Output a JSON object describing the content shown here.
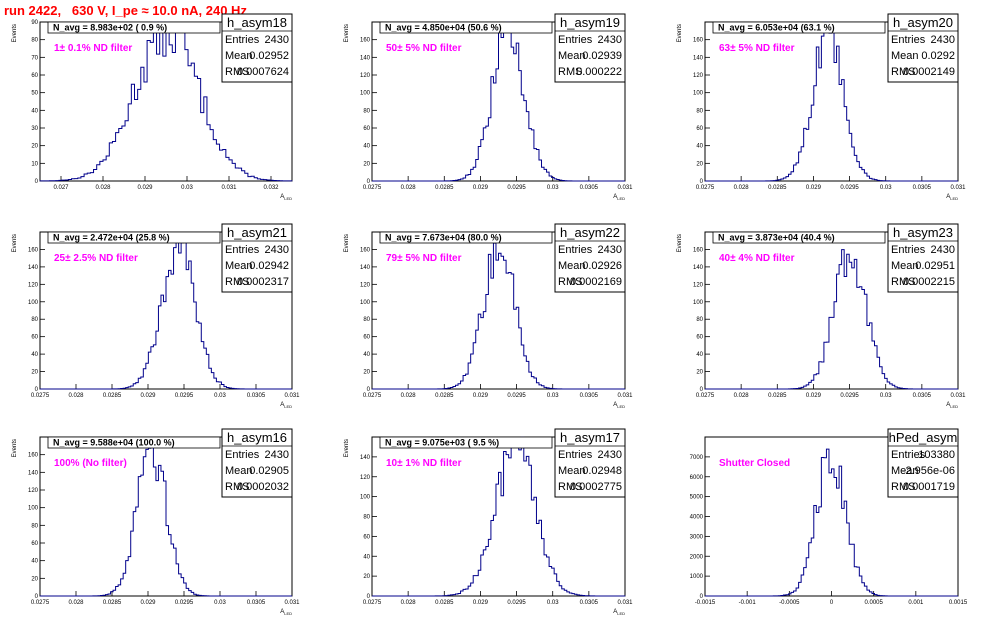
{
  "page": {
    "title": "run 2422,   630 V, I_pe ≈ 10.0 nA, 240 Hz",
    "title_color": "#ff0000"
  },
  "colors": {
    "histogram_line": "#00008b",
    "note_text": "#ff00ff",
    "frame": "#000000"
  },
  "chart_data": [
    {
      "type": "bar",
      "name": "h_asym18",
      "stats": {
        "entries_label": "Entries",
        "entries": "2430",
        "mean_label": "Mean",
        "mean": "0.02952",
        "rms_label": "RMS",
        "rms": "0.0007624"
      },
      "n_avg": "N_avg = 8.983e+02 ( 0.9 %)",
      "note": "1± 0.1% ND filter",
      "xlabel": "A_LED",
      "ylabel": "Events",
      "xlim": [
        0.0265,
        0.0325
      ],
      "ylim": [
        0,
        90
      ],
      "xticks": [
        0.027,
        0.028,
        0.029,
        0.03,
        0.031,
        0.032
      ],
      "xtick_labels": [
        "0.027",
        "0.028",
        "0.029",
        "0.03",
        "0.031",
        "0.032"
      ],
      "yticks": [
        0,
        10,
        20,
        30,
        40,
        50,
        60,
        70,
        80,
        90
      ],
      "ytick_labels": [
        "0",
        "10",
        "20",
        "30",
        "40",
        "50",
        "60",
        "70",
        "80",
        "90"
      ],
      "mean_value": 0.02952,
      "rms_value": 0.0007624,
      "peak": 85,
      "bins": 80
    },
    {
      "type": "bar",
      "name": "h_asym19",
      "stats": {
        "entries_label": "Entries",
        "entries": "2430",
        "mean_label": "Mean",
        "mean": "0.02939",
        "rms_label": "RMS",
        "rms": "0.000222"
      },
      "n_avg": "N_avg = 4.850e+04 (50.6 %)",
      "note": "50± 5% ND filter",
      "xlabel": "A_LED",
      "ylabel": "Events",
      "xlim": [
        0.0275,
        0.031
      ],
      "ylim": [
        0,
        180
      ],
      "xticks": [
        0.0275,
        0.028,
        0.0285,
        0.029,
        0.0295,
        0.03,
        0.0305,
        0.031
      ],
      "xtick_labels": [
        "0.0275",
        "0.028",
        "0.0285",
        "0.029",
        "0.0295",
        "0.03",
        "0.0305",
        "0.031"
      ],
      "yticks": [
        0,
        20,
        40,
        60,
        80,
        100,
        120,
        140,
        160
      ],
      "ytick_labels": [
        "0",
        "20",
        "40",
        "60",
        "80",
        "100",
        "120",
        "140",
        "160"
      ],
      "mean_value": 0.02939,
      "rms_value": 0.000222,
      "peak": 172,
      "bins": 100
    },
    {
      "type": "bar",
      "name": "h_asym20",
      "stats": {
        "entries_label": "Entries",
        "entries": "2430",
        "mean_label": "Mean",
        "mean": "0.0292",
        "rms_label": "RMS",
        "rms": "0.0002149"
      },
      "n_avg": "N_avg = 6.053e+04 (63.1 %)",
      "note": "63± 5% ND filter",
      "xlabel": "A_LED",
      "ylabel": "Events",
      "xlim": [
        0.0275,
        0.031
      ],
      "ylim": [
        0,
        180
      ],
      "xticks": [
        0.0275,
        0.028,
        0.0285,
        0.029,
        0.0295,
        0.03,
        0.0305,
        0.031
      ],
      "xtick_labels": [
        "0.0275",
        "0.028",
        "0.0285",
        "0.029",
        "0.0295",
        "0.03",
        "0.0305",
        "0.031"
      ],
      "yticks": [
        0,
        20,
        40,
        60,
        80,
        100,
        120,
        140,
        160
      ],
      "ytick_labels": [
        "0",
        "20",
        "40",
        "60",
        "80",
        "100",
        "120",
        "140",
        "160"
      ],
      "mean_value": 0.0292,
      "rms_value": 0.0002149,
      "peak": 162,
      "bins": 100
    },
    {
      "type": "bar",
      "name": "h_asym21",
      "stats": {
        "entries_label": "Entries",
        "entries": "2430",
        "mean_label": "Mean",
        "mean": "0.02942",
        "rms_label": "RMS",
        "rms": "0.0002317"
      },
      "n_avg": "N_avg = 2.472e+04 (25.8 %)",
      "note": "25± 2.5% ND filter",
      "xlabel": "A_LED",
      "ylabel": "Events",
      "xlim": [
        0.0275,
        0.031
      ],
      "ylim": [
        0,
        180
      ],
      "xticks": [
        0.0275,
        0.028,
        0.0285,
        0.029,
        0.0295,
        0.03,
        0.0305,
        0.031
      ],
      "xtick_labels": [
        "0.0275",
        "0.028",
        "0.0285",
        "0.029",
        "0.0295",
        "0.03",
        "0.0305",
        "0.031"
      ],
      "yticks": [
        0,
        20,
        40,
        60,
        80,
        100,
        120,
        140,
        160
      ],
      "ytick_labels": [
        "0",
        "20",
        "40",
        "60",
        "80",
        "100",
        "120",
        "140",
        "160"
      ],
      "mean_value": 0.02942,
      "rms_value": 0.0002317,
      "peak": 165,
      "bins": 100
    },
    {
      "type": "bar",
      "name": "h_asym22",
      "stats": {
        "entries_label": "Entries",
        "entries": "2430",
        "mean_label": "Mean",
        "mean": "0.02926",
        "rms_label": "RMS",
        "rms": "0.0002169"
      },
      "n_avg": "N_avg = 7.673e+04 (80.0 %)",
      "note": "79± 5% ND filter",
      "xlabel": "A_LED",
      "ylabel": "Events",
      "xlim": [
        0.0275,
        0.031
      ],
      "ylim": [
        0,
        180
      ],
      "xticks": [
        0.0275,
        0.028,
        0.0285,
        0.029,
        0.0295,
        0.03,
        0.0305,
        0.031
      ],
      "xtick_labels": [
        "0.0275",
        "0.028",
        "0.0285",
        "0.029",
        "0.0295",
        "0.03",
        "0.0305",
        "0.031"
      ],
      "yticks": [
        0,
        20,
        40,
        60,
        80,
        100,
        120,
        140,
        160
      ],
      "ytick_labels": [
        "0",
        "20",
        "40",
        "60",
        "80",
        "100",
        "120",
        "140",
        "160"
      ],
      "mean_value": 0.02926,
      "rms_value": 0.0002169,
      "peak": 162,
      "bins": 100
    },
    {
      "type": "bar",
      "name": "h_asym23",
      "stats": {
        "entries_label": "Entries",
        "entries": "2430",
        "mean_label": "Mean",
        "mean": "0.02951",
        "rms_label": "RMS",
        "rms": "0.0002215"
      },
      "n_avg": "N_avg = 3.873e+04 (40.4 %)",
      "note": "40± 4% ND filter",
      "xlabel": "A_LED",
      "ylabel": "Events",
      "xlim": [
        0.0275,
        0.031
      ],
      "ylim": [
        0,
        180
      ],
      "xticks": [
        0.0275,
        0.028,
        0.0285,
        0.029,
        0.0295,
        0.03,
        0.0305,
        0.031
      ],
      "xtick_labels": [
        "0.0275",
        "0.028",
        "0.0285",
        "0.029",
        "0.0295",
        "0.03",
        "0.0305",
        "0.031"
      ],
      "yticks": [
        0,
        20,
        40,
        60,
        80,
        100,
        120,
        140,
        160
      ],
      "ytick_labels": [
        "0",
        "20",
        "40",
        "60",
        "80",
        "100",
        "120",
        "140",
        "160"
      ],
      "mean_value": 0.02951,
      "rms_value": 0.0002215,
      "peak": 158,
      "bins": 100
    },
    {
      "type": "bar",
      "name": "h_asym16",
      "stats": {
        "entries_label": "Entries",
        "entries": "2430",
        "mean_label": "Mean",
        "mean": "0.02905",
        "rms_label": "RMS",
        "rms": "0.0002032"
      },
      "n_avg": "N_avg = 9.588e+04 (100.0 %)",
      "note": "100% (No filter)",
      "xlabel": "A_LED",
      "ylabel": "Events",
      "xlim": [
        0.0275,
        0.031
      ],
      "ylim": [
        0,
        180
      ],
      "xticks": [
        0.0275,
        0.028,
        0.0285,
        0.029,
        0.0295,
        0.03,
        0.0305,
        0.031
      ],
      "xtick_labels": [
        "0.0275",
        "0.028",
        "0.0285",
        "0.029",
        "0.0295",
        "0.03",
        "0.0305",
        "0.031"
      ],
      "yticks": [
        0,
        20,
        40,
        60,
        80,
        100,
        120,
        140,
        160
      ],
      "ytick_labels": [
        "0",
        "20",
        "40",
        "60",
        "80",
        "100",
        "120",
        "140",
        "160"
      ],
      "mean_value": 0.02905,
      "rms_value": 0.0002032,
      "peak": 170,
      "bins": 100
    },
    {
      "type": "bar",
      "name": "h_asym17",
      "stats": {
        "entries_label": "Entries",
        "entries": "2430",
        "mean_label": "Mean",
        "mean": "0.02948",
        "rms_label": "RMS",
        "rms": "0.0002775"
      },
      "n_avg": "N_avg = 9.075e+03 ( 9.5 %)",
      "note": "10± 1% ND filter",
      "xlabel": "A_LED",
      "ylabel": "Events",
      "xlim": [
        0.0275,
        0.031
      ],
      "ylim": [
        0,
        160
      ],
      "xticks": [
        0.0275,
        0.028,
        0.0285,
        0.029,
        0.0295,
        0.03,
        0.0305,
        0.031
      ],
      "xtick_labels": [
        "0.0275",
        "0.028",
        "0.0285",
        "0.029",
        "0.0295",
        "0.03",
        "0.0305",
        "0.031"
      ],
      "yticks": [
        0,
        20,
        40,
        60,
        80,
        100,
        120,
        140
      ],
      "ytick_labels": [
        "0",
        "20",
        "40",
        "60",
        "80",
        "100",
        "120",
        "140"
      ],
      "mean_value": 0.02948,
      "rms_value": 0.0002775,
      "peak": 148,
      "bins": 100
    },
    {
      "type": "bar",
      "name": "hPed_asym",
      "stats": {
        "entries_label": "Entries",
        "entries": "103380",
        "mean_label": "Mean",
        "mean": "-2.956e-06",
        "rms_label": "RMS",
        "rms": "0.0001719"
      },
      "n_avg": "",
      "note": "Shutter Closed",
      "xlabel": "",
      "ylabel": "",
      "xlim": [
        -0.0015,
        0.0015
      ],
      "ylim": [
        0,
        8000
      ],
      "xticks": [
        -0.0015,
        -0.001,
        -0.0005,
        0,
        0.0005,
        0.001,
        0.0015
      ],
      "xtick_labels": [
        "-0.0015",
        "-0.001",
        "-0.0005",
        "0",
        "0.0005",
        "0.001",
        "0.0015"
      ],
      "yticks": [
        0,
        1000,
        2000,
        3000,
        4000,
        5000,
        6000,
        7000
      ],
      "ytick_labels": [
        "0",
        "1000",
        "2000",
        "3000",
        "4000",
        "5000",
        "6000",
        "7000"
      ],
      "mean_value": -3e-06,
      "rms_value": 0.0001719,
      "peak": 7200,
      "bins": 100
    }
  ]
}
